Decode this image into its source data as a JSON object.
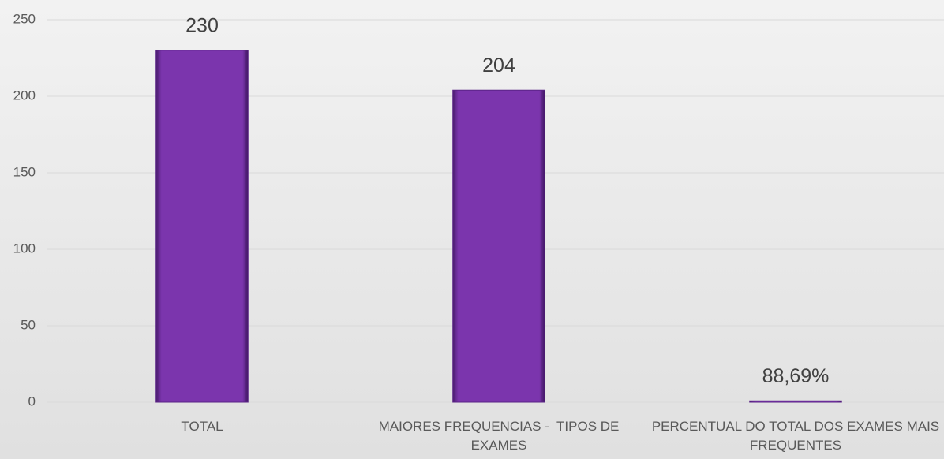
{
  "chart_data": {
    "type": "bar",
    "categories": [
      "TOTAL",
      "MAIORES FREQUENCIAS -  TIPOS DE EXAMES",
      "PERCENTUAL DO TOTAL DOS EXAMES MAIS FREQUENTES"
    ],
    "values": [
      230,
      204,
      0.8869
    ],
    "value_labels": [
      "230",
      "204",
      "88,69%"
    ],
    "color": "#7b35ad",
    "ylim": [
      0,
      250
    ],
    "yticks": [
      0,
      50,
      100,
      150,
      200,
      250
    ],
    "grid": true
  }
}
